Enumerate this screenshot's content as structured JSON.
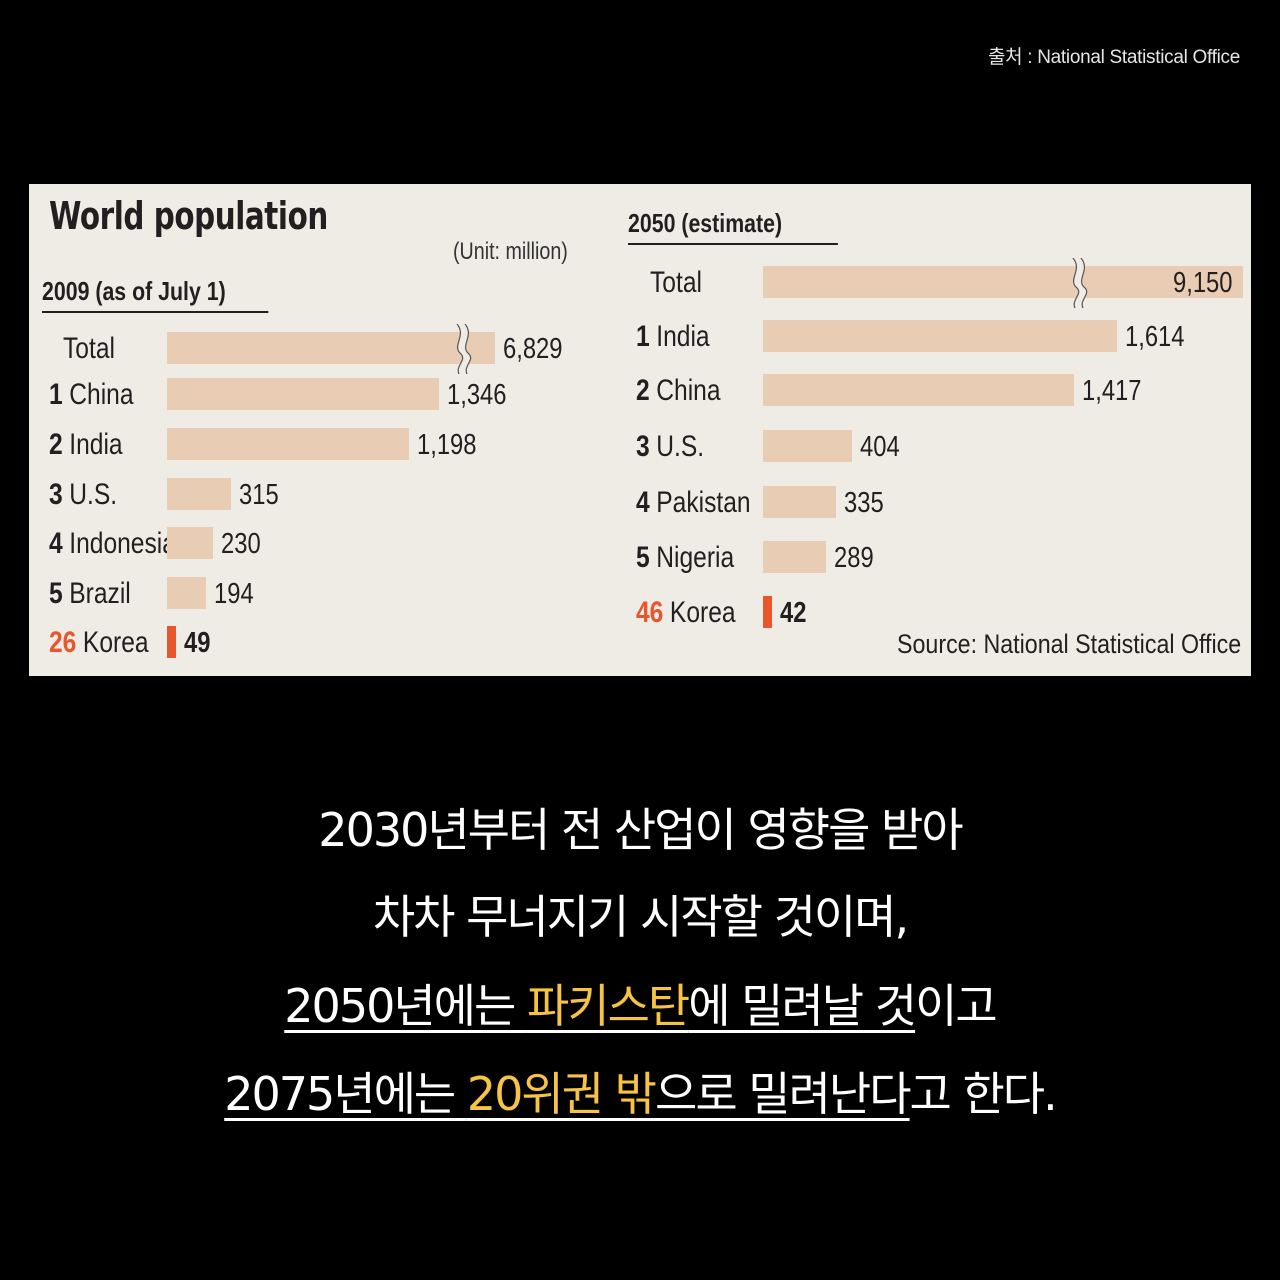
{
  "source_top": "출처 : National Statistical Office",
  "chart_data": [
    {
      "type": "bar",
      "title": "World population",
      "unit": "(Unit: million)",
      "subtitle": "2009 (as of July 1)",
      "rows": [
        {
          "rank": "",
          "label": "Total",
          "value": 6829,
          "display": "6,829",
          "broken": true,
          "highlight": false
        },
        {
          "rank": "1",
          "label": "China",
          "value": 1346,
          "display": "1,346",
          "broken": false,
          "highlight": false
        },
        {
          "rank": "2",
          "label": "India",
          "value": 1198,
          "display": "1,198",
          "broken": false,
          "highlight": false
        },
        {
          "rank": "3",
          "label": "U.S.",
          "value": 315,
          "display": "315",
          "broken": false,
          "highlight": false
        },
        {
          "rank": "4",
          "label": "Indonesia",
          "value": 230,
          "display": "230",
          "broken": false,
          "highlight": false
        },
        {
          "rank": "5",
          "label": "Brazil",
          "value": 194,
          "display": "194",
          "broken": false,
          "highlight": false
        },
        {
          "rank": "26",
          "label": "Korea",
          "value": 49,
          "display": "49",
          "broken": false,
          "highlight": true
        }
      ]
    },
    {
      "type": "bar",
      "subtitle": "2050 (estimate)",
      "rows": [
        {
          "rank": "",
          "label": "Total",
          "value": 9150,
          "display": "9,150",
          "broken": true,
          "highlight": false
        },
        {
          "rank": "1",
          "label": "India",
          "value": 1614,
          "display": "1,614",
          "broken": false,
          "highlight": false
        },
        {
          "rank": "2",
          "label": "China",
          "value": 1417,
          "display": "1,417",
          "broken": false,
          "highlight": false
        },
        {
          "rank": "3",
          "label": "U.S.",
          "value": 404,
          "display": "404",
          "broken": false,
          "highlight": false
        },
        {
          "rank": "4",
          "label": "Pakistan",
          "value": 335,
          "display": "335",
          "broken": false,
          "highlight": false
        },
        {
          "rank": "5",
          "label": "Nigeria",
          "value": 289,
          "display": "289",
          "broken": false,
          "highlight": false
        },
        {
          "rank": "46",
          "label": "Korea",
          "value": 42,
          "display": "42",
          "broken": false,
          "highlight": true
        }
      ],
      "source": "Source: National Statistical Office"
    }
  ],
  "colors": {
    "bar": "#e8cdb4",
    "highlight": "#e8562b",
    "panel": "#efece6",
    "accent_text": "#f6c343"
  },
  "caption": {
    "line1": "2030년부터 전 산업이 영향을 받아",
    "line2": "차차 무너지기 시작할 것이며,",
    "line3_a": "2050년에는 ",
    "line3_b": "파키스탄",
    "line3_c": "에 밀려날 것",
    "line3_d": "이고",
    "line4_a": "2075년에는 ",
    "line4_b": "20위권 밖",
    "line4_c": "으로 밀려난다",
    "line4_d": "고 한다."
  }
}
